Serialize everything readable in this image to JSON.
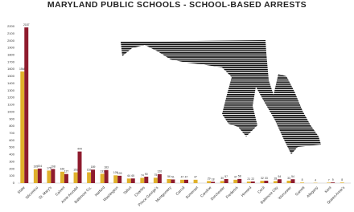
{
  "chart_data": {
    "type": "bar",
    "title": "MARYLAND PUBLIC SCHOOLS - SCHOOL-BASED ARRESTS",
    "categories": [
      "State",
      "Wicomico",
      "St. Mary's",
      "Calvert",
      "Anne Arundel",
      "Baltimore Co.",
      "Harford",
      "Washington",
      "Talbot",
      "Charles",
      "Prince George's",
      "Montgomery",
      "Carroll",
      "Somerset",
      "Caroline",
      "Dorchester",
      "Frederick",
      "Howard",
      "Cecil",
      "Baltimore City",
      "Worcester",
      "Garrett",
      "Allegany",
      "Kent",
      "Queen Anne's"
    ],
    "series": [
      {
        "color": "#e0b12b",
        "values": [
          1568,
          195,
          176,
          160,
          151,
          152,
          131,
          109,
          64,
          74,
          75,
          56,
          47,
          47,
          29,
          30,
          47,
          21,
          32,
          28,
          33,
          8,
          4,
          7,
          8
        ]
      },
      {
        "color": "#8e1b2e",
        "values": [
          2187,
          204,
          198,
          127,
          444,
          189,
          183,
          103,
          65,
          90,
          126,
          51,
          47,
          null,
          18,
          57,
          58,
          22,
          33,
          54,
          54,
          null,
          null,
          9,
          null
        ]
      }
    ],
    "ylim": [
      0,
      2200
    ],
    "yticks": [
      0,
      100,
      200,
      300,
      400,
      500,
      600,
      700,
      800,
      900,
      1000,
      1100,
      1200,
      1300,
      1400,
      1500,
      1600,
      1700,
      1800,
      1900,
      2000,
      2100,
      2200
    ],
    "grid": false
  }
}
